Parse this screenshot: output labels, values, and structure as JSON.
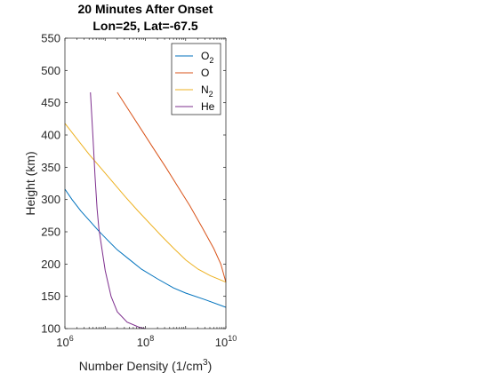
{
  "chart_data": {
    "type": "line",
    "title": [
      "20 Minutes After Onset",
      "Lon=25, Lat=-67.5"
    ],
    "xlabel": {
      "base": "Number Density (1/cm",
      "sup": "3",
      "end": ")"
    },
    "ylabel": "Height (km)",
    "xscale": "log",
    "xlim": [
      1000000,
      10000000000
    ],
    "ylim": [
      100,
      550
    ],
    "xticks": [
      {
        "value": 1000000,
        "base": "10",
        "exp": "6"
      },
      {
        "value": 100000000,
        "base": "10",
        "exp": "8"
      },
      {
        "value": 10000000000,
        "base": "10",
        "exp": "10"
      }
    ],
    "yticks": [
      100,
      150,
      200,
      250,
      300,
      350,
      400,
      450,
      500,
      550
    ],
    "legend_position": "top-right",
    "grid": false,
    "series": [
      {
        "name": "O",
        "name_sub": "2",
        "color": "#0072BD",
        "points": [
          [
            1000000,
            316
          ],
          [
            1500000,
            300
          ],
          [
            2500000,
            282
          ],
          [
            4000000,
            268
          ],
          [
            7000000,
            251
          ],
          [
            12000000,
            236
          ],
          [
            20000000,
            222
          ],
          [
            40000000,
            207
          ],
          [
            80000000,
            192
          ],
          [
            200000000,
            177
          ],
          [
            500000000,
            163
          ],
          [
            1000000000,
            155
          ],
          [
            3000000000,
            145
          ],
          [
            10000000000,
            133
          ]
        ]
      },
      {
        "name": "O",
        "name_sub": "",
        "color": "#D95319",
        "points": [
          [
            20000000,
            466
          ],
          [
            40000000,
            437
          ],
          [
            80000000,
            408
          ],
          [
            160000000,
            379
          ],
          [
            320000000,
            350
          ],
          [
            640000000,
            320
          ],
          [
            1280000000,
            290
          ],
          [
            2560000000,
            257
          ],
          [
            5000000000,
            224
          ],
          [
            7500000000,
            200
          ],
          [
            10000000000,
            172
          ]
        ]
      },
      {
        "name": "N",
        "name_sub": "2",
        "color": "#EDB120",
        "points": [
          [
            1000000,
            418
          ],
          [
            2000000,
            394
          ],
          [
            4000000,
            370
          ],
          [
            8000000,
            348
          ],
          [
            16000000,
            326
          ],
          [
            32000000,
            304
          ],
          [
            64000000,
            283
          ],
          [
            128000000,
            263
          ],
          [
            256000000,
            243
          ],
          [
            512000000,
            224
          ],
          [
            1024000000,
            206
          ],
          [
            2048000000,
            192
          ],
          [
            4096000000,
            182
          ],
          [
            10000000000,
            172
          ]
        ]
      },
      {
        "name": "He",
        "name_sub": "",
        "color": "#7E2F8E",
        "points": [
          [
            4300000,
            466
          ],
          [
            5000000,
            395
          ],
          [
            5600000,
            335
          ],
          [
            6300000,
            285
          ],
          [
            7000000,
            255
          ],
          [
            8000000,
            230
          ],
          [
            10000000,
            190
          ],
          [
            14000000,
            150
          ],
          [
            20000000,
            126
          ],
          [
            35000000,
            110
          ],
          [
            70000000,
            102
          ],
          [
            100000000,
            100
          ]
        ]
      }
    ]
  }
}
